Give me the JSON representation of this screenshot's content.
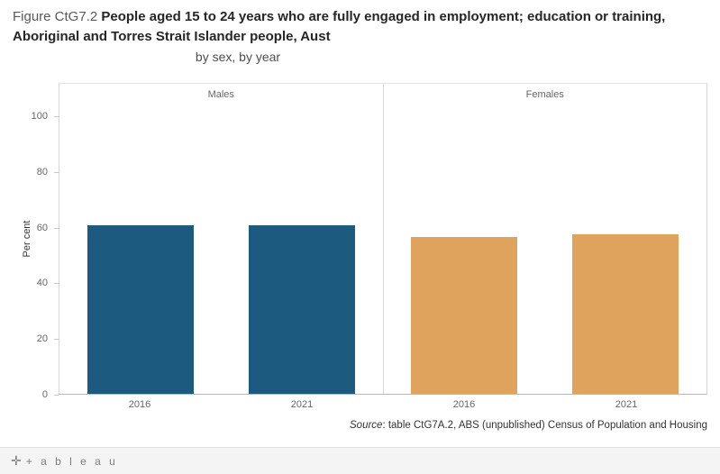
{
  "title": {
    "prefix": "Figure CtG7.2 ",
    "main": "People aged 15 to 24 years who are fully engaged in employment; education or training, Aboriginal and Torres Strait Islander people, Aust",
    "subtitle": "by sex, by year"
  },
  "source": {
    "label_italic": "Source",
    "text": ": table CtG7A.2, ABS (unpublished) Census of Population and Housing"
  },
  "footer": {
    "logo_mark": "✛",
    "logo_text": "+ a b l e a u"
  },
  "chart_data": {
    "type": "bar",
    "title": "Figure CtG7.2 People aged 15 to 24 years who are fully engaged in employment; education or training, Aboriginal and Torres Strait Islander people, Aust",
    "subtitle": "by sex, by year",
    "categories": [
      "2016",
      "2021"
    ],
    "series": [
      {
        "name": "Males",
        "values": [
          61,
          61
        ],
        "color": "#1d5a80"
      },
      {
        "name": "Females",
        "values": [
          56.5,
          57.5
        ],
        "color": "#e0a35e"
      }
    ],
    "facets": [
      "Males",
      "Females"
    ],
    "xlabel": "",
    "ylabel": "Per cent",
    "yticks": [
      0,
      20,
      40,
      60,
      80,
      100
    ],
    "ylim": [
      0,
      112
    ],
    "grid": false,
    "legend_position": "none"
  }
}
